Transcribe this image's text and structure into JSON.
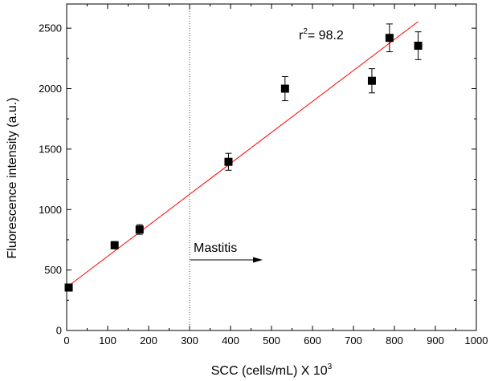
{
  "chart_data": {
    "type": "scatter",
    "title": "",
    "xlabel": "SCC (cells/mL) X 10",
    "xlabel_superscript": "3",
    "ylabel": "Fluorescence intensity (a.u.)",
    "xlim": [
      0,
      1000
    ],
    "ylim": [
      0,
      2700
    ],
    "x_ticks": [
      0,
      100,
      200,
      300,
      400,
      500,
      600,
      700,
      800,
      900,
      1000
    ],
    "y_ticks": [
      0,
      500,
      1000,
      1500,
      2000,
      2500
    ],
    "grid": false,
    "legend": "none",
    "series": [
      {
        "marker": "square",
        "color": "#000000",
        "points": [
          {
            "x": 5,
            "y": 355,
            "err": 15
          },
          {
            "x": 117,
            "y": 705,
            "err": 30
          },
          {
            "x": 178,
            "y": 835,
            "err": 40
          },
          {
            "x": 395,
            "y": 1395,
            "err": 70
          },
          {
            "x": 533,
            "y": 2000,
            "err": 100
          },
          {
            "x": 745,
            "y": 2065,
            "err": 100
          },
          {
            "x": 788,
            "y": 2420,
            "err": 115
          },
          {
            "x": 858,
            "y": 2355,
            "err": 115
          }
        ]
      }
    ],
    "fit_line": {
      "color": "#ff0000",
      "x": [
        5,
        858
      ],
      "y": [
        370,
        2555
      ]
    },
    "threshold_line": {
      "x": 300,
      "style": "dotted"
    },
    "annotations": {
      "r2_prefix": "r",
      "r2_superscript": "2",
      "r2_value": "= 98.2",
      "mastitis_label": "Mastitis"
    }
  }
}
